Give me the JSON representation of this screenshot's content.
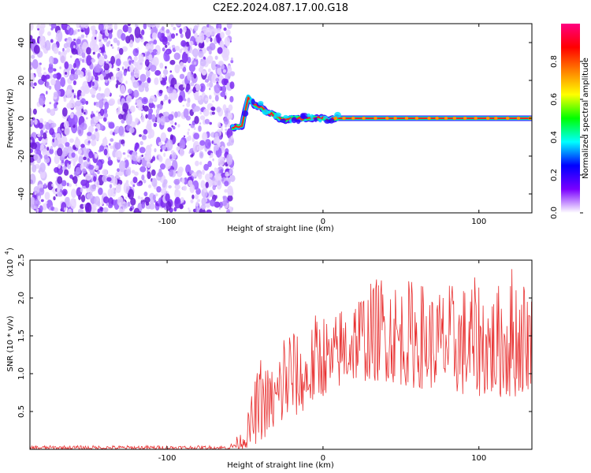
{
  "title": "C2E2.2024.087.17.00.G18",
  "chart_data": [
    {
      "type": "heatmap",
      "xlabel": "Height of straight line (km)",
      "ylabel": "Frequency (Hz)",
      "xlim": [
        -188,
        134
      ],
      "ylim": [
        -50,
        50
      ],
      "x_ticks": [
        -100,
        0,
        100
      ],
      "y_ticks": [
        -40,
        -20,
        0,
        20,
        40
      ],
      "noise_region_x": [
        -188,
        -58
      ],
      "signal_ridge": {
        "x": [
          -58,
          -52,
          -48,
          -44,
          -40,
          -36,
          -32,
          -28,
          -24,
          -20,
          -16,
          -12,
          -8,
          -4,
          0,
          4,
          8,
          20,
          40,
          60,
          80,
          100,
          120,
          134
        ],
        "y": [
          -5,
          -4,
          11,
          7,
          6,
          3,
          2,
          0,
          -1,
          0,
          0,
          0,
          0,
          0,
          0,
          -1,
          0,
          0,
          0,
          0,
          0,
          0,
          0,
          0
        ]
      },
      "colorbar": {
        "label": "Normalized spectral amplitude",
        "range": [
          0,
          1
        ],
        "ticks": [
          "0.0",
          "0.2",
          "0.4",
          "0.6",
          "0.8"
        ],
        "colors": [
          "#ffffff",
          "#7a00ff",
          "#0000ff",
          "#00ffff",
          "#00ff00",
          "#ffff00",
          "#ff8000",
          "#ff0000",
          "#ff0080"
        ]
      }
    },
    {
      "type": "line",
      "xlabel": "Height of straight line (km)",
      "ylabel": "SNR (10 * v/v)",
      "scale_label": "(x10",
      "scale_exp": "4",
      "xlim": [
        -188,
        134
      ],
      "ylim": [
        0,
        2.5
      ],
      "x_ticks": [
        -100,
        0,
        100
      ],
      "y_ticks": [
        "0.5",
        "1.0",
        "1.5",
        "2.0",
        "2.5"
      ],
      "color": "#e83030",
      "envelope": {
        "x": [
          -188,
          -60,
          -50,
          -45,
          -40,
          -35,
          -30,
          -25,
          -20,
          -15,
          -10,
          -5,
          0,
          5,
          10,
          20,
          30,
          40,
          50,
          60,
          70,
          80,
          90,
          100,
          110,
          120,
          134
        ],
        "min": [
          0.0,
          0.0,
          0.01,
          0.05,
          0.1,
          0.2,
          0.25,
          0.3,
          0.4,
          0.45,
          0.55,
          0.6,
          0.7,
          0.75,
          0.8,
          0.9,
          0.9,
          0.9,
          0.85,
          0.8,
          0.8,
          0.8,
          0.7,
          0.7,
          0.7,
          0.65,
          0.8
        ],
        "max": [
          0.05,
          0.05,
          0.3,
          0.8,
          1.25,
          1.1,
          1.15,
          1.7,
          1.75,
          1.4,
          1.5,
          1.8,
          1.9,
          1.6,
          1.9,
          2.1,
          2.2,
          2.4,
          2.2,
          2.3,
          2.1,
          2.2,
          2.2,
          2.3,
          2.1,
          2.5,
          2.2
        ]
      }
    }
  ]
}
